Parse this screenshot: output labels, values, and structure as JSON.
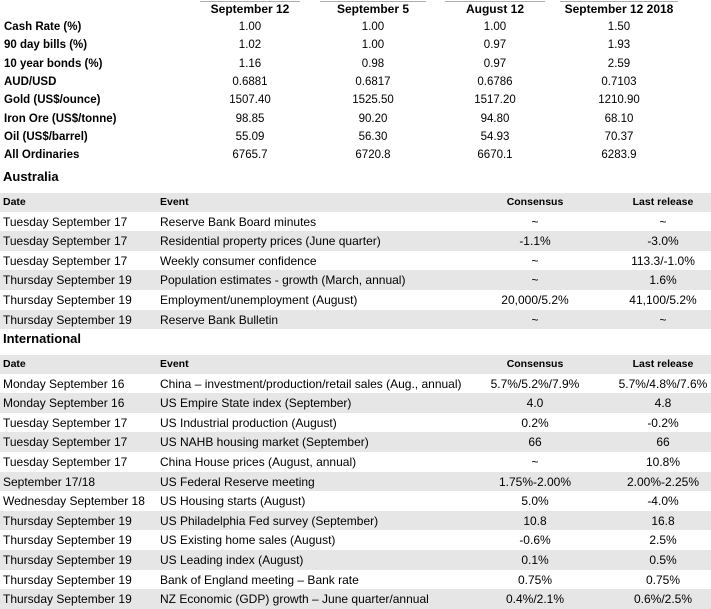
{
  "market": {
    "columns": [
      "September 12",
      "September 5",
      "August 12",
      "September 12 2018"
    ],
    "rows": [
      {
        "label": "Cash Rate (%)",
        "values": [
          "1.00",
          "1.00",
          "1.00",
          "1.50"
        ]
      },
      {
        "label": "90 day bills (%)",
        "values": [
          "1.02",
          "1.00",
          "0.97",
          "1.93"
        ]
      },
      {
        "label": "10 year bonds (%)",
        "values": [
          "1.16",
          "0.98",
          "0.97",
          "2.59"
        ]
      },
      {
        "label": "AUD/USD",
        "values": [
          "0.6881",
          "0.6817",
          "0.6786",
          "0.7103"
        ]
      },
      {
        "label": "Gold (US$/ounce)",
        "values": [
          "1507.40",
          "1525.50",
          "1517.20",
          "1210.90"
        ]
      },
      {
        "label": "Iron Ore (US$/tonne)",
        "values": [
          "98.85",
          "90.20",
          "94.80",
          "68.10"
        ]
      },
      {
        "label": "Oil (US$/barrel)",
        "values": [
          "55.09",
          "56.30",
          "54.93",
          "70.37"
        ]
      },
      {
        "label": "All Ordinaries",
        "values": [
          "6765.7",
          "6720.8",
          "6670.1",
          "6283.9"
        ]
      }
    ]
  },
  "australia": {
    "title": "Australia",
    "headers": {
      "date": "Date",
      "event": "Event",
      "consensus": "Consensus",
      "last": "Last release"
    },
    "rows": [
      {
        "date": "Tuesday September 17",
        "event": "Reserve Bank Board minutes",
        "consensus": "~",
        "last": "~"
      },
      {
        "date": "Tuesday September 17",
        "event": "Residential property prices (June quarter)",
        "consensus": "-1.1%",
        "last": "-3.0%"
      },
      {
        "date": "Tuesday September 17",
        "event": "Weekly consumer confidence",
        "consensus": "~",
        "last": "113.3/-1.0%"
      },
      {
        "date": "Thursday September 19",
        "event": "Population estimates - growth (March, annual)",
        "consensus": "~",
        "last": "1.6%"
      },
      {
        "date": "Thursday September 19",
        "event": "Employment/unemployment (August)",
        "consensus": "20,000/5.2%",
        "last": "41,100/5.2%"
      },
      {
        "date": "Thursday September 19",
        "event": "Reserve Bank Bulletin",
        "consensus": "~",
        "last": "~"
      }
    ]
  },
  "international": {
    "title": "International",
    "headers": {
      "date": "Date",
      "event": "Event",
      "consensus": "Consensus",
      "last": "Last release"
    },
    "rows": [
      {
        "date": "Monday September 16",
        "event": "China – investment/production/retail sales (Aug., annual)",
        "consensus": "5.7%/5.2%/7.9%",
        "last": "5.7%/4.8%/7.6%"
      },
      {
        "date": "Monday September 16",
        "event": "US Empire State index (September)",
        "consensus": "4.0",
        "last": "4.8"
      },
      {
        "date": "Tuesday September 17",
        "event": "US Industrial production (August)",
        "consensus": "0.2%",
        "last": "-0.2%"
      },
      {
        "date": "Tuesday September 17",
        "event": "US NAHB housing market (September)",
        "consensus": "66",
        "last": "66"
      },
      {
        "date": "Tuesday September 17",
        "event": "China House prices (August, annual)",
        "consensus": "~",
        "last": "10.8%"
      },
      {
        "date": "September 17/18",
        "event": "US Federal Reserve meeting",
        "consensus": "1.75%-2.00%",
        "last": "2.00%-2.25%"
      },
      {
        "date": "Wednesday September 18",
        "event": "US Housing starts (August)",
        "consensus": "5.0%",
        "last": "-4.0%"
      },
      {
        "date": "Thursday September 19",
        "event": "US Philadelphia Fed survey (September)",
        "consensus": "10.8",
        "last": "16.8"
      },
      {
        "date": "Thursday September 19",
        "event": "US Existing home sales (August)",
        "consensus": "-0.6%",
        "last": "2.5%"
      },
      {
        "date": "Thursday September 19",
        "event": "US Leading index (August)",
        "consensus": "0.1%",
        "last": "0.5%"
      },
      {
        "date": "Thursday September 19",
        "event": "Bank of England meeting – Bank rate",
        "consensus": "0.75%",
        "last": "0.75%"
      },
      {
        "date": "Thursday September 19",
        "event": "NZ Economic (GDP) growth – June quarter/annual",
        "consensus": "0.4%/2.1%",
        "last": "0.6%/2.5%"
      }
    ]
  }
}
